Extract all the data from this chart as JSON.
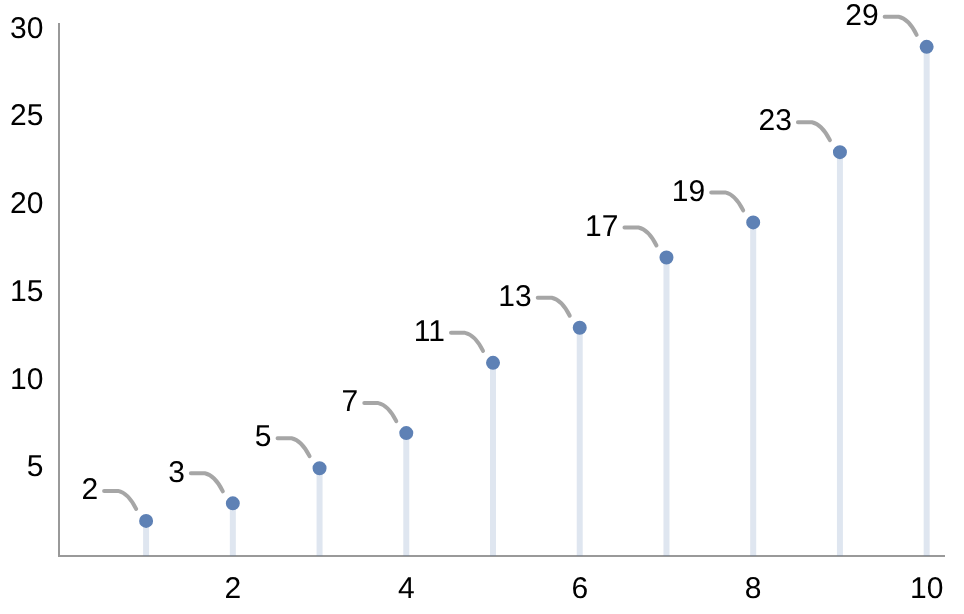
{
  "chart_data": {
    "type": "lollipop",
    "x": [
      1,
      2,
      3,
      4,
      5,
      6,
      7,
      8,
      9,
      10
    ],
    "values": [
      2,
      3,
      5,
      7,
      11,
      13,
      17,
      19,
      23,
      29
    ],
    "color": "#5e81b5",
    "data_labels": true,
    "xlim": [
      0,
      10.2
    ],
    "ylim": [
      0,
      30.3
    ],
    "xticks": [
      2,
      4,
      6,
      8,
      10
    ],
    "yticks": [
      5,
      10,
      15,
      20,
      25,
      30
    ],
    "grid": false,
    "legend": false,
    "marker": "circle"
  }
}
